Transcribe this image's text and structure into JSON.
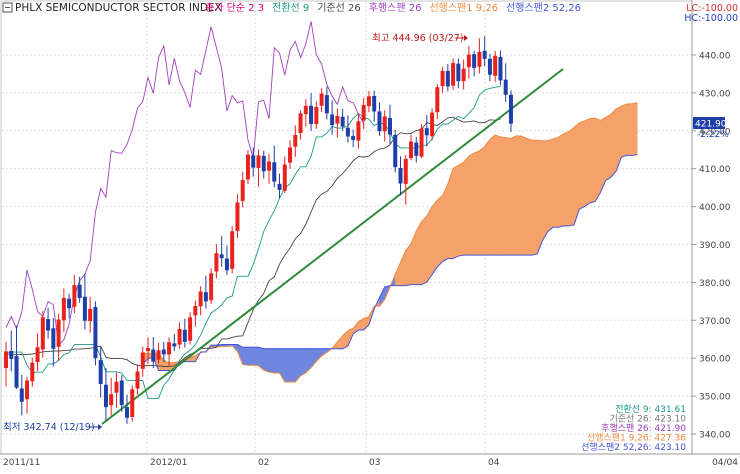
{
  "header": {
    "index_name": "PHLX SEMICONDUCTOR SECTOR INDEX",
    "legend": [
      {
        "text": "종가 단순 2  3",
        "color": "#e0007a"
      },
      {
        "text": "전환선 9",
        "color": "#1a9a8a"
      },
      {
        "text": "기준선 26",
        "color": "#444444"
      },
      {
        "text": "후행스팬 26",
        "color": "#a040c0"
      },
      {
        "text": "선행스팬1 9,26",
        "color": "#f08a40"
      },
      {
        "text": "선행스팬2 52,26",
        "color": "#4455dd"
      }
    ],
    "lc": "LC:-100.00",
    "hc": "HC:-100.00"
  },
  "price_tag": {
    "value": "421.90",
    "change": "-2.22%"
  },
  "annotations": {
    "high": "최고 444.96 (03/27)",
    "low": "최저 342.74 (12/19)"
  },
  "summary": [
    {
      "text": "전환선 9: 431.61",
      "color": "#1a9a8a"
    },
    {
      "text": "기준선 26: 423.10",
      "color": "#777777"
    },
    {
      "text": "후행스팬 26: 421.90",
      "color": "#a040c0"
    },
    {
      "text": "선행스팬1 9,26: 427.36",
      "color": "#f08a40"
    },
    {
      "text": "선행스팬2 52,26: 423.10",
      "color": "#4455dd"
    }
  ],
  "chart_data": {
    "type": "candlestick-ichimoku",
    "title": "PHLX SEMICONDUCTOR SECTOR INDEX",
    "ylim": [
      335,
      449
    ],
    "y_ticks": [
      "440.00",
      "430.00",
      "420.00",
      "410.00",
      "400.00",
      "390.00",
      "380.00",
      "370.00",
      "360.00",
      "350.00",
      "340.00"
    ],
    "x_labels": [
      "2011/11",
      "2012/01",
      "02",
      "03",
      "04",
      "04/04"
    ],
    "colors": {
      "up": "#e8231e",
      "down": "#1f3fa8",
      "conversion": "#1a9a8a",
      "base": "#444444",
      "lagging": "#a040c0",
      "span1": "#f08a40",
      "span2": "#4455dd",
      "cloud_bull": "#f5a26a",
      "cloud_bear": "#6f86e0",
      "trendline": "#2e8b3a"
    },
    "candles": [
      {
        "o": 357.4,
        "h": 364.3,
        "l": 352.5,
        "c": 361.8
      },
      {
        "o": 361.9,
        "h": 367.3,
        "l": 356.5,
        "c": 359.8
      },
      {
        "o": 360.6,
        "h": 368.6,
        "l": 351.9,
        "c": 352.2
      },
      {
        "o": 352.0,
        "h": 355.6,
        "l": 344.9,
        "c": 348.5
      },
      {
        "o": 349.2,
        "h": 355.1,
        "l": 345.4,
        "c": 354.1
      },
      {
        "o": 353.9,
        "h": 360.2,
        "l": 352.5,
        "c": 358.8
      },
      {
        "o": 359.0,
        "h": 366.6,
        "l": 356.6,
        "c": 362.9
      },
      {
        "o": 362.3,
        "h": 372.4,
        "l": 360.2,
        "c": 370.8
      },
      {
        "o": 370.3,
        "h": 373.3,
        "l": 365.2,
        "c": 367.3
      },
      {
        "o": 367.9,
        "h": 370.6,
        "l": 357.8,
        "c": 362.5
      },
      {
        "o": 363.0,
        "h": 371.7,
        "l": 359.2,
        "c": 370.2
      },
      {
        "o": 370.0,
        "h": 378.4,
        "l": 366.9,
        "c": 375.9
      },
      {
        "o": 375.7,
        "h": 377.0,
        "l": 370.5,
        "c": 373.2
      },
      {
        "o": 373.6,
        "h": 382.0,
        "l": 371.9,
        "c": 379.3
      },
      {
        "o": 379.4,
        "h": 381.5,
        "l": 374.6,
        "c": 375.9
      },
      {
        "o": 376.2,
        "h": 382.3,
        "l": 367.6,
        "c": 369.9
      },
      {
        "o": 369.8,
        "h": 376.2,
        "l": 366.7,
        "c": 373.0
      },
      {
        "o": 373.5,
        "h": 375.0,
        "l": 358.1,
        "c": 360.0
      },
      {
        "o": 359.5,
        "h": 363.0,
        "l": 349.6,
        "c": 353.2
      },
      {
        "o": 353.0,
        "h": 357.4,
        "l": 343.5,
        "c": 347.1
      },
      {
        "o": 347.6,
        "h": 354.8,
        "l": 344.9,
        "c": 350.5
      },
      {
        "o": 350.9,
        "h": 356.2,
        "l": 346.9,
        "c": 353.8
      },
      {
        "o": 354.1,
        "h": 355.6,
        "l": 345.9,
        "c": 347.6
      },
      {
        "o": 347.1,
        "h": 350.4,
        "l": 342.7,
        "c": 344.3
      },
      {
        "o": 344.5,
        "h": 352.9,
        "l": 343.3,
        "c": 351.8
      },
      {
        "o": 352.0,
        "h": 358.4,
        "l": 350.4,
        "c": 356.5
      },
      {
        "o": 357.2,
        "h": 363.1,
        "l": 355.1,
        "c": 361.5
      },
      {
        "o": 361.9,
        "h": 365.5,
        "l": 358.5,
        "c": 362.7
      },
      {
        "o": 362.3,
        "h": 365.6,
        "l": 357.4,
        "c": 359.1
      },
      {
        "o": 359.6,
        "h": 364.1,
        "l": 358.6,
        "c": 362.1
      },
      {
        "o": 362.3,
        "h": 364.3,
        "l": 359.0,
        "c": 361.0
      },
      {
        "o": 361.0,
        "h": 365.5,
        "l": 358.1,
        "c": 364.2
      },
      {
        "o": 363.9,
        "h": 366.4,
        "l": 361.9,
        "c": 363.1
      },
      {
        "o": 363.6,
        "h": 369.5,
        "l": 362.5,
        "c": 367.7
      },
      {
        "o": 367.5,
        "h": 370.4,
        "l": 362.8,
        "c": 364.3
      },
      {
        "o": 364.6,
        "h": 372.1,
        "l": 363.6,
        "c": 370.8
      },
      {
        "o": 371.3,
        "h": 375.2,
        "l": 368.3,
        "c": 373.8
      },
      {
        "o": 373.7,
        "h": 379.0,
        "l": 371.3,
        "c": 377.6
      },
      {
        "o": 377.4,
        "h": 381.8,
        "l": 373.1,
        "c": 375.0
      },
      {
        "o": 375.3,
        "h": 383.7,
        "l": 374.3,
        "c": 382.4
      },
      {
        "o": 382.9,
        "h": 390.1,
        "l": 381.1,
        "c": 387.7
      },
      {
        "o": 387.4,
        "h": 392.2,
        "l": 384.1,
        "c": 386.4
      },
      {
        "o": 386.3,
        "h": 389.7,
        "l": 382.0,
        "c": 383.2
      },
      {
        "o": 383.6,
        "h": 394.9,
        "l": 382.4,
        "c": 393.5
      },
      {
        "o": 393.6,
        "h": 403.3,
        "l": 391.7,
        "c": 401.1
      },
      {
        "o": 401.5,
        "h": 409.2,
        "l": 399.8,
        "c": 407.0
      },
      {
        "o": 407.2,
        "h": 414.9,
        "l": 405.9,
        "c": 413.7
      },
      {
        "o": 413.5,
        "h": 415.6,
        "l": 407.9,
        "c": 410.3
      },
      {
        "o": 410.2,
        "h": 415.1,
        "l": 405.2,
        "c": 413.5
      },
      {
        "o": 413.4,
        "h": 414.7,
        "l": 407.4,
        "c": 409.3
      },
      {
        "o": 409.5,
        "h": 413.9,
        "l": 406.0,
        "c": 411.9
      },
      {
        "o": 411.7,
        "h": 416.1,
        "l": 405.1,
        "c": 406.6
      },
      {
        "o": 406.0,
        "h": 408.7,
        "l": 402.2,
        "c": 404.4
      },
      {
        "o": 404.2,
        "h": 413.2,
        "l": 403.6,
        "c": 411.1
      },
      {
        "o": 411.6,
        "h": 417.5,
        "l": 410.0,
        "c": 415.6
      },
      {
        "o": 415.8,
        "h": 421.4,
        "l": 413.1,
        "c": 418.9
      },
      {
        "o": 419.4,
        "h": 425.4,
        "l": 417.7,
        "c": 424.6
      },
      {
        "o": 424.4,
        "h": 428.3,
        "l": 421.1,
        "c": 426.6
      },
      {
        "o": 426.6,
        "h": 429.9,
        "l": 420.0,
        "c": 421.8
      },
      {
        "o": 421.8,
        "h": 427.8,
        "l": 420.5,
        "c": 426.3
      },
      {
        "o": 426.6,
        "h": 431.2,
        "l": 424.9,
        "c": 429.8
      },
      {
        "o": 429.4,
        "h": 431.7,
        "l": 423.0,
        "c": 424.6
      },
      {
        "o": 424.3,
        "h": 428.0,
        "l": 419.0,
        "c": 421.5
      },
      {
        "o": 421.9,
        "h": 425.9,
        "l": 418.2,
        "c": 423.9
      },
      {
        "o": 423.7,
        "h": 425.8,
        "l": 420.0,
        "c": 421.1
      },
      {
        "o": 420.8,
        "h": 424.1,
        "l": 416.9,
        "c": 418.5
      },
      {
        "o": 418.6,
        "h": 420.3,
        "l": 415.7,
        "c": 417.6
      },
      {
        "o": 417.4,
        "h": 424.6,
        "l": 415.3,
        "c": 422.5
      },
      {
        "o": 422.7,
        "h": 428.7,
        "l": 420.4,
        "c": 426.8
      },
      {
        "o": 426.5,
        "h": 430.5,
        "l": 424.9,
        "c": 429.1
      },
      {
        "o": 429.2,
        "h": 430.6,
        "l": 422.4,
        "c": 425.1
      },
      {
        "o": 425.1,
        "h": 427.5,
        "l": 418.7,
        "c": 419.9
      },
      {
        "o": 419.9,
        "h": 425.4,
        "l": 417.2,
        "c": 423.8
      },
      {
        "o": 423.4,
        "h": 426.9,
        "l": 416.6,
        "c": 419.0
      },
      {
        "o": 418.9,
        "h": 420.2,
        "l": 409.0,
        "c": 410.4
      },
      {
        "o": 410.2,
        "h": 413.3,
        "l": 403.0,
        "c": 406.1
      },
      {
        "o": 406.0,
        "h": 413.6,
        "l": 400.5,
        "c": 412.6
      },
      {
        "o": 412.8,
        "h": 419.0,
        "l": 412.2,
        "c": 417.2
      },
      {
        "o": 416.9,
        "h": 418.4,
        "l": 411.6,
        "c": 413.4
      },
      {
        "o": 413.2,
        "h": 421.8,
        "l": 412.8,
        "c": 420.6
      },
      {
        "o": 420.7,
        "h": 424.2,
        "l": 415.9,
        "c": 418.8
      },
      {
        "o": 418.6,
        "h": 425.9,
        "l": 417.5,
        "c": 424.8
      },
      {
        "o": 424.9,
        "h": 432.3,
        "l": 423.1,
        "c": 431.5
      },
      {
        "o": 431.8,
        "h": 436.8,
        "l": 430.0,
        "c": 435.8
      },
      {
        "o": 435.8,
        "h": 437.6,
        "l": 430.4,
        "c": 431.7
      },
      {
        "o": 431.9,
        "h": 439.1,
        "l": 430.8,
        "c": 437.9
      },
      {
        "o": 437.7,
        "h": 439.1,
        "l": 431.2,
        "c": 433.1
      },
      {
        "o": 433.1,
        "h": 438.8,
        "l": 430.9,
        "c": 436.4
      },
      {
        "o": 436.8,
        "h": 442.4,
        "l": 433.8,
        "c": 440.1
      },
      {
        "o": 440.2,
        "h": 441.1,
        "l": 434.4,
        "c": 436.6
      },
      {
        "o": 436.9,
        "h": 444.4,
        "l": 435.1,
        "c": 440.8
      },
      {
        "o": 441.1,
        "h": 445.0,
        "l": 437.1,
        "c": 439.0
      },
      {
        "o": 439.0,
        "h": 440.3,
        "l": 433.1,
        "c": 434.8
      },
      {
        "o": 434.5,
        "h": 441.1,
        "l": 432.9,
        "c": 439.8
      },
      {
        "o": 439.5,
        "h": 441.2,
        "l": 432.0,
        "c": 433.3
      },
      {
        "o": 433.5,
        "h": 437.8,
        "l": 427.6,
        "c": 429.5
      },
      {
        "o": 429.5,
        "h": 430.7,
        "l": 419.7,
        "c": 421.9
      }
    ],
    "conversion_line": [
      361.5,
      361.6,
      361.6,
      361.6,
      358.1,
      356.3,
      356.3,
      356.3,
      358.5,
      358.5,
      359.4,
      361.0,
      361.4,
      363.6,
      363.6,
      363.6,
      363.6,
      363.6,
      360.4,
      356.4,
      356.4,
      356.4,
      356.1,
      354.1,
      354.1,
      354.1,
      354.1,
      349.4,
      349.4,
      349.4,
      352.9,
      354.5,
      357.0,
      359.4,
      361.1,
      362.1,
      363.6,
      366.1,
      369.2,
      371.9,
      372.9,
      374.1,
      375.9,
      376.4,
      381.6,
      381.6,
      381.6,
      384.7,
      388.9,
      393.4,
      396.4,
      398.9,
      402.2,
      404.9,
      406.0,
      408.5,
      410.5,
      410.5,
      413.3,
      418.4,
      418.4,
      419.4,
      421.1,
      420.7,
      420.7,
      421.3,
      423.3,
      424.6,
      423.6,
      423.1,
      421.4,
      422.1,
      421.8,
      419.7,
      416.6,
      415.5,
      415.5,
      415.5,
      415.5,
      416.2,
      416.2,
      417.9,
      420.4,
      421.8,
      421.8,
      422.8,
      423.8,
      423.2,
      424.6,
      426.1,
      429.4,
      430.8,
      431.2,
      431.5,
      431.7
    ],
    "base_line": [
      361.1,
      361.0,
      361.0,
      361.0,
      361.0,
      361.1,
      361.4,
      361.7,
      361.8,
      361.9,
      361.9,
      362.0,
      362.1,
      362.4,
      362.4,
      362.5,
      362.6,
      362.9,
      363.2,
      360.3,
      359.9,
      359.9,
      359.9,
      359.6,
      358.6,
      358.1,
      358.1,
      358.1,
      358.1,
      358.0,
      357.8,
      357.8,
      358.0,
      358.9,
      360.1,
      361.0,
      361.6,
      362.5,
      362.6,
      362.6,
      362.9,
      365.1,
      365.1,
      365.5,
      365.8,
      365.9,
      369.4,
      372.8,
      375.3,
      377.1,
      380.4,
      381.5,
      384.8,
      387.2,
      389.0,
      391.5,
      392.9,
      395.3,
      398.6,
      401.8,
      403.3,
      404.0,
      405.5,
      407.5,
      408.7,
      410.3,
      412.1,
      413.2,
      413.1,
      413.3,
      414.5,
      415.2,
      415.4,
      416.3,
      418.4,
      419.5,
      419.2,
      419.3,
      420.1,
      420.4,
      422.2,
      421.7,
      421.4,
      422.4,
      423.4,
      423.6,
      422.9,
      422.3,
      422.4,
      422.6,
      422.1,
      422.2,
      422.9,
      422.8,
      423.1
    ],
    "lagging_span": [
      368.1,
      371.0,
      367.8,
      372.2,
      383.3,
      378.2,
      372.3,
      371.0,
      375.0,
      374.1,
      363.4,
      364.9,
      369.0,
      376.3,
      380.4,
      382.2,
      385.7,
      398.5,
      404.8,
      402.5,
      414.8,
      414.2,
      414.1,
      416.4,
      420.2,
      426.0,
      427.7,
      434.1,
      429.9,
      439.3,
      442.4,
      432.1,
      439.1,
      433.1,
      430.1,
      426.2,
      436.0,
      434.9,
      441.2,
      447.5,
      441.9,
      436.5,
      425.2,
      429.3,
      427.4,
      427.9,
      417.6,
      412.8,
      427.6,
      428.1,
      423.2,
      441.9,
      440.5,
      434.7,
      441.3,
      443.6,
      439.3,
      442.9,
      448.9,
      440.1,
      437.6,
      432.2,
      429.1,
      427.0,
      431.6,
      428.0,
      427.4,
      424.4,
      421.9
    ]
  }
}
